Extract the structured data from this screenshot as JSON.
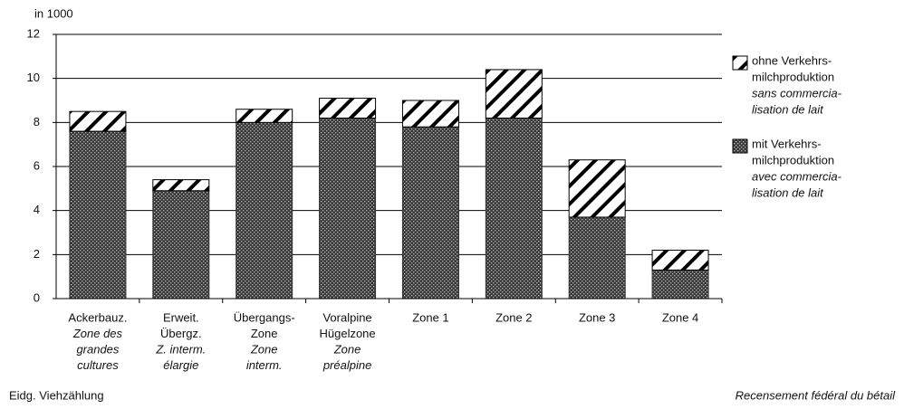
{
  "chart_data": {
    "type": "bar",
    "stacked": true,
    "y_label": "in 1000",
    "categories": [
      [
        "Ackerbauz."
      ],
      [
        "Erweit.",
        "Übergz."
      ],
      [
        "Übergangs-",
        "Zone"
      ],
      [
        "Voralpine",
        "Hügelzone"
      ],
      [
        "Zone 1"
      ],
      [
        "Zone 2"
      ],
      [
        "Zone 3"
      ],
      [
        "Zone 4"
      ]
    ],
    "categories_fr": [
      [
        "Zone des",
        "grandes",
        "cultures"
      ],
      [
        "Z. interm.",
        "élargie"
      ],
      [
        "Zone",
        "interm."
      ],
      [
        "Zone",
        "préalpine"
      ],
      [],
      [],
      [],
      []
    ],
    "series": [
      {
        "name": [
          "mit Verkehrs-",
          "milchproduktion"
        ],
        "name_fr": [
          "avec commercia-",
          "lisation de lait"
        ],
        "pattern": "crosshatch",
        "color": "#333333",
        "values": [
          7.6,
          4.9,
          8.0,
          8.2,
          7.8,
          8.2,
          3.7,
          1.3
        ]
      },
      {
        "name": [
          "ohne Verkehrs-",
          "milchproduktion"
        ],
        "name_fr": [
          "sans commercia-",
          "lisation de lait"
        ],
        "pattern": "diagonal",
        "color": "#000000",
        "values": [
          0.9,
          0.5,
          0.6,
          0.9,
          1.2,
          2.2,
          2.6,
          0.9
        ]
      }
    ],
    "ylim": [
      0,
      12
    ],
    "yticks": [
      0,
      2,
      4,
      6,
      8,
      10,
      12
    ],
    "grid": true,
    "legend": "right",
    "source_left": "Eidg. Viehzählung",
    "source_right": "Recensement fédéral du bétail"
  }
}
